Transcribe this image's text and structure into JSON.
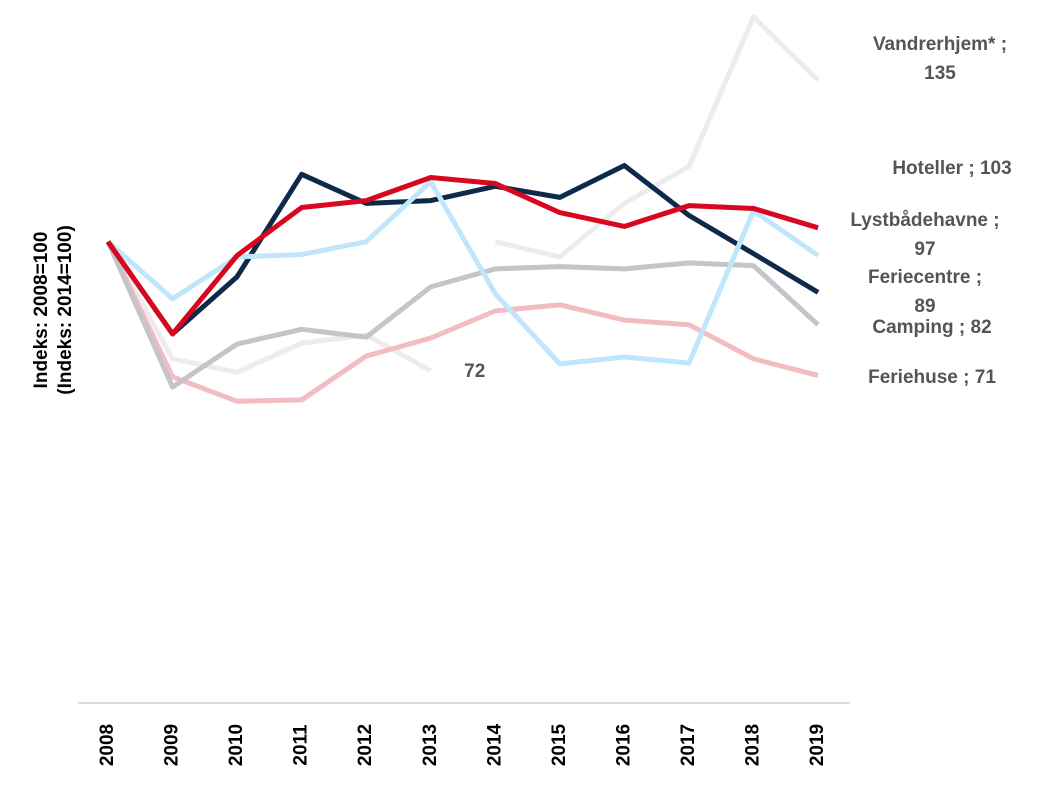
{
  "chart_data": {
    "type": "line",
    "y_label": [
      "Indeks: 2008=100",
      "(Indeks: 2014=100)"
    ],
    "categories": [
      "2008",
      "2009",
      "2010",
      "2011",
      "2012",
      "2013",
      "2014",
      "2015",
      "2016",
      "2017",
      "2018",
      "2019"
    ],
    "ylim": [
      0,
      150
    ],
    "label_separator": " ; ",
    "series": [
      {
        "name": "Hoteller",
        "color": "#d9061f",
        "values": [
          100,
          80,
          97,
          107.4,
          108.9,
          113.9,
          112.6,
          106.3,
          103.3,
          107.8,
          107.2,
          103
        ]
      },
      {
        "name": "Lystbådehavne",
        "color": "#bfe6fb",
        "values": [
          100,
          87.6,
          96.7,
          97.2,
          100,
          113,
          88.7,
          73.5,
          75,
          73.7,
          106.7,
          97
        ]
      },
      {
        "name": "Feriecentre",
        "color": "#0d2a4a",
        "values": [
          100,
          80,
          92.4,
          114.6,
          108.3,
          108.9,
          112,
          109.6,
          116.5,
          105.7,
          97.4,
          89
        ]
      },
      {
        "name": "Camping",
        "color": "#c4c4ca",
        "values": [
          100,
          68.5,
          77.8,
          81,
          79.3,
          90.2,
          94.1,
          94.6,
          94.1,
          95.4,
          94.8,
          82
        ]
      },
      {
        "name": "Feriehuse",
        "color": "#f2bcc2",
        "values": [
          100,
          70.7,
          65.4,
          65.7,
          75.2,
          79.1,
          85,
          86.3,
          83,
          82,
          74.6,
          71
        ]
      },
      {
        "name": "Vandrerhjem*",
        "color": "#ececec",
        "break_after": "2013",
        "values": [
          100,
          74.6,
          71.7,
          78,
          79.8,
          72,
          100,
          96.7,
          108.3,
          116.3,
          148.7,
          135
        ]
      }
    ]
  }
}
